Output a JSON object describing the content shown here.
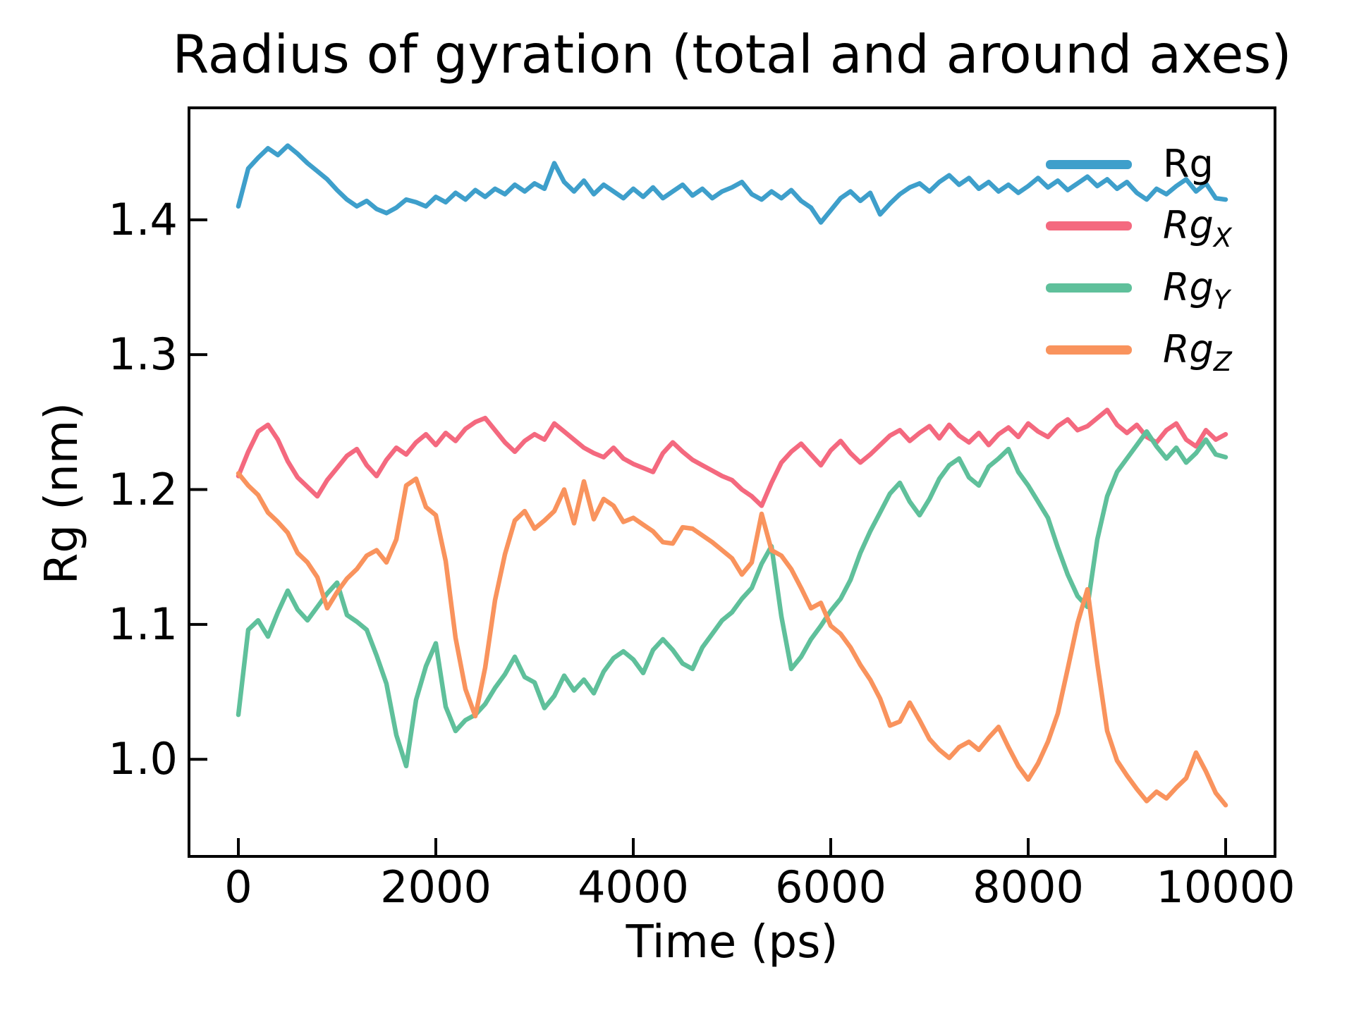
{
  "figure": {
    "background": "#ffffff",
    "text_color": "#000000",
    "spine_color": "#000000"
  },
  "chart_data": {
    "type": "line",
    "title": "Radius of gyration (total and around axes)",
    "xlabel": "Time (ps)",
    "ylabel": "Rg (nm)",
    "xlim": [
      -500,
      10500
    ],
    "ylim": [
      0.928,
      1.483
    ],
    "x_ticks": [
      0,
      2000,
      4000,
      6000,
      8000,
      10000
    ],
    "x_tick_labels": [
      "0",
      "2000",
      "4000",
      "6000",
      "8000",
      "10000"
    ],
    "y_ticks": [
      1.0,
      1.1,
      1.2,
      1.3,
      1.4
    ],
    "y_tick_labels": [
      "1.0",
      "1.1",
      "1.2",
      "1.3",
      "1.4"
    ],
    "grid": false,
    "legend_position": "upper right",
    "tick_direction": "in",
    "x": {
      "start": 0,
      "step": 100,
      "count": 101,
      "unit": "ps"
    },
    "series": [
      {
        "id": "rg",
        "label_base": "Rg",
        "label_sub": "",
        "italic": false,
        "color": "#3E9FCB",
        "values": [
          1.41,
          1.438,
          1.446,
          1.453,
          1.448,
          1.455,
          1.449,
          1.442,
          1.436,
          1.43,
          1.422,
          1.415,
          1.41,
          1.414,
          1.408,
          1.405,
          1.409,
          1.415,
          1.413,
          1.41,
          1.417,
          1.413,
          1.42,
          1.415,
          1.422,
          1.417,
          1.423,
          1.419,
          1.426,
          1.421,
          1.427,
          1.423,
          1.442,
          1.428,
          1.421,
          1.429,
          1.419,
          1.426,
          1.421,
          1.416,
          1.423,
          1.417,
          1.424,
          1.416,
          1.421,
          1.426,
          1.418,
          1.423,
          1.416,
          1.421,
          1.424,
          1.428,
          1.419,
          1.415,
          1.421,
          1.416,
          1.422,
          1.414,
          1.409,
          1.398,
          1.407,
          1.416,
          1.421,
          1.414,
          1.42,
          1.404,
          1.412,
          1.419,
          1.424,
          1.427,
          1.421,
          1.428,
          1.433,
          1.426,
          1.431,
          1.423,
          1.428,
          1.421,
          1.426,
          1.42,
          1.425,
          1.431,
          1.424,
          1.429,
          1.422,
          1.427,
          1.432,
          1.425,
          1.43,
          1.423,
          1.428,
          1.42,
          1.415,
          1.423,
          1.419,
          1.425,
          1.43,
          1.421,
          1.427,
          1.416,
          1.415
        ]
      },
      {
        "id": "rgx",
        "label_base": "Rg",
        "label_sub": "X",
        "italic": true,
        "color": "#F4697F",
        "values": [
          1.21,
          1.228,
          1.243,
          1.248,
          1.237,
          1.221,
          1.209,
          1.202,
          1.195,
          1.207,
          1.216,
          1.225,
          1.23,
          1.218,
          1.21,
          1.222,
          1.231,
          1.226,
          1.235,
          1.241,
          1.233,
          1.242,
          1.236,
          1.245,
          1.25,
          1.253,
          1.244,
          1.235,
          1.228,
          1.236,
          1.241,
          1.237,
          1.249,
          1.243,
          1.237,
          1.231,
          1.227,
          1.224,
          1.231,
          1.223,
          1.219,
          1.216,
          1.213,
          1.227,
          1.235,
          1.228,
          1.222,
          1.218,
          1.214,
          1.21,
          1.207,
          1.2,
          1.195,
          1.188,
          1.205,
          1.22,
          1.228,
          1.234,
          1.226,
          1.218,
          1.229,
          1.236,
          1.227,
          1.22,
          1.226,
          1.233,
          1.24,
          1.244,
          1.236,
          1.242,
          1.247,
          1.238,
          1.248,
          1.24,
          1.235,
          1.242,
          1.233,
          1.241,
          1.246,
          1.239,
          1.249,
          1.243,
          1.239,
          1.247,
          1.252,
          1.244,
          1.247,
          1.253,
          1.259,
          1.248,
          1.242,
          1.248,
          1.239,
          1.235,
          1.244,
          1.249,
          1.237,
          1.232,
          1.244,
          1.237,
          1.241
        ]
      },
      {
        "id": "rgy",
        "label_base": "Rg",
        "label_sub": "Y",
        "italic": true,
        "color": "#5FC09B",
        "values": [
          1.033,
          1.096,
          1.103,
          1.091,
          1.109,
          1.125,
          1.111,
          1.103,
          1.113,
          1.123,
          1.131,
          1.107,
          1.102,
          1.096,
          1.077,
          1.056,
          1.018,
          0.995,
          1.044,
          1.069,
          1.086,
          1.039,
          1.021,
          1.029,
          1.033,
          1.041,
          1.053,
          1.063,
          1.076,
          1.061,
          1.057,
          1.038,
          1.047,
          1.062,
          1.051,
          1.059,
          1.049,
          1.065,
          1.075,
          1.08,
          1.074,
          1.064,
          1.081,
          1.089,
          1.081,
          1.071,
          1.067,
          1.083,
          1.093,
          1.103,
          1.109,
          1.119,
          1.127,
          1.145,
          1.158,
          1.106,
          1.067,
          1.076,
          1.089,
          1.099,
          1.11,
          1.119,
          1.133,
          1.153,
          1.169,
          1.183,
          1.197,
          1.205,
          1.191,
          1.181,
          1.193,
          1.208,
          1.218,
          1.223,
          1.209,
          1.203,
          1.217,
          1.223,
          1.23,
          1.213,
          1.203,
          1.191,
          1.179,
          1.157,
          1.137,
          1.121,
          1.113,
          1.163,
          1.195,
          1.213,
          1.223,
          1.233,
          1.243,
          1.232,
          1.223,
          1.231,
          1.22,
          1.227,
          1.237,
          1.226,
          1.224
        ]
      },
      {
        "id": "rgz",
        "label_base": "Rg",
        "label_sub": "Z",
        "italic": true,
        "color": "#F9935D",
        "values": [
          1.212,
          1.203,
          1.196,
          1.183,
          1.176,
          1.168,
          1.153,
          1.146,
          1.135,
          1.112,
          1.124,
          1.134,
          1.141,
          1.151,
          1.155,
          1.146,
          1.163,
          1.203,
          1.208,
          1.187,
          1.181,
          1.147,
          1.09,
          1.052,
          1.032,
          1.068,
          1.118,
          1.152,
          1.177,
          1.184,
          1.171,
          1.177,
          1.184,
          1.2,
          1.175,
          1.206,
          1.178,
          1.193,
          1.188,
          1.176,
          1.179,
          1.174,
          1.169,
          1.161,
          1.16,
          1.172,
          1.171,
          1.166,
          1.161,
          1.155,
          1.149,
          1.137,
          1.146,
          1.182,
          1.155,
          1.151,
          1.141,
          1.127,
          1.112,
          1.116,
          1.099,
          1.093,
          1.083,
          1.07,
          1.059,
          1.045,
          1.025,
          1.028,
          1.042,
          1.029,
          1.015,
          1.007,
          1.001,
          1.009,
          1.013,
          1.007,
          1.016,
          1.024,
          1.009,
          0.995,
          0.985,
          0.997,
          1.013,
          1.034,
          1.067,
          1.101,
          1.126,
          1.071,
          1.021,
          0.999,
          0.988,
          0.978,
          0.969,
          0.976,
          0.971,
          0.979,
          0.986,
          1.005,
          0.991,
          0.975,
          0.966
        ]
      }
    ]
  }
}
